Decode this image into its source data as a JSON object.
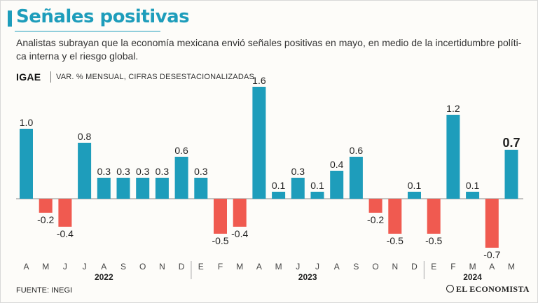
{
  "title": "Señales positivas",
  "subtitle": "Analistas subrayan que la economía mexicana envió señales positivas en mayo, en medio de la incertidumbre políti-ca interna y el riesgo global.",
  "indicator": "IGAE",
  "units": "VAR. % MENSUAL, CIFRAS DESESTACIONALIZADAS",
  "source": "FUENTE: INEGI",
  "brand": "EL ECONOMISTA",
  "colors": {
    "positive": "#1e9dbb",
    "negative": "#f05a50",
    "title": "#1e9dbb"
  },
  "chart_data": {
    "type": "bar",
    "title": "IGAE",
    "ylabel": "Var. % mensual, cifras desestacionalizadas",
    "xlabel": "",
    "ylim": [
      -0.9,
      1.7
    ],
    "categories": [
      "A",
      "M",
      "J",
      "J",
      "A",
      "S",
      "O",
      "N",
      "D",
      "E",
      "F",
      "M",
      "A",
      "M",
      "J",
      "J",
      "A",
      "S",
      "O",
      "N",
      "D",
      "E",
      "F",
      "M",
      "A",
      "M"
    ],
    "labels": [
      "1.0",
      "-0.2",
      "-0.4",
      "0.8",
      "0.3",
      "0.3",
      "0.3",
      "0.3",
      "0.6",
      "0.3",
      "-0.5",
      "-0.4",
      "1.6",
      "0.1",
      "0.3",
      "0.1",
      "0.4",
      "0.6",
      "-0.2",
      "-0.5",
      "0.1",
      "-0.5",
      "1.2",
      "0.1",
      "-0.7",
      "0.7"
    ],
    "values": [
      1.0,
      -0.2,
      -0.4,
      0.8,
      0.3,
      0.3,
      0.3,
      0.3,
      0.6,
      0.3,
      -0.5,
      -0.4,
      1.6,
      0.1,
      0.3,
      0.1,
      0.4,
      0.6,
      -0.2,
      -0.5,
      0.1,
      -0.5,
      1.2,
      0.1,
      -0.7,
      0.7
    ],
    "highlight_last": true,
    "years": [
      {
        "label": "2022",
        "start": 0,
        "end": 8
      },
      {
        "label": "2023",
        "start": 9,
        "end": 20
      },
      {
        "label": "2024",
        "start": 21,
        "end": 25
      }
    ]
  }
}
